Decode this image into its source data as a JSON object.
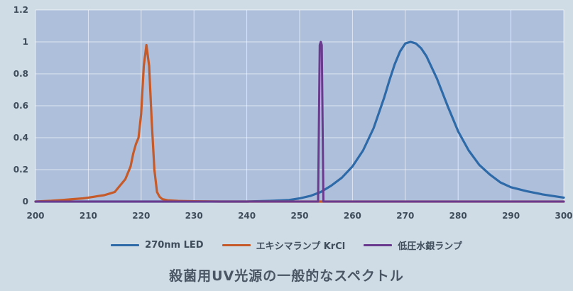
{
  "caption": "殺菌用UV光源の一般的なスペクトル",
  "chart_data": {
    "type": "line",
    "title": "殺菌用UV光源の一般的なスペクトル",
    "xlabel": "",
    "ylabel": "",
    "xlim": [
      200,
      300
    ],
    "ylim": [
      0,
      1.2
    ],
    "x_ticks": [
      200,
      210,
      220,
      230,
      240,
      250,
      260,
      270,
      280,
      290,
      300
    ],
    "y_ticks": [
      0,
      0.2,
      0.4,
      0.6,
      0.8,
      1,
      1.2
    ],
    "grid": true,
    "legend_position": "bottom",
    "background": "#aebfdc",
    "series": [
      {
        "name": "270nm LED",
        "color": "#2e6aa8",
        "x": [
          200,
          240,
          245,
          248,
          250,
          252,
          254,
          256,
          258,
          260,
          262,
          264,
          266,
          267,
          268,
          269,
          270,
          271,
          272,
          273,
          274,
          276,
          278,
          280,
          282,
          284,
          286,
          288,
          290,
          293,
          296,
          300
        ],
        "values": [
          0,
          0,
          0.005,
          0.01,
          0.02,
          0.035,
          0.06,
          0.1,
          0.15,
          0.22,
          0.32,
          0.46,
          0.65,
          0.76,
          0.86,
          0.94,
          0.99,
          1.0,
          0.99,
          0.96,
          0.91,
          0.77,
          0.6,
          0.44,
          0.32,
          0.23,
          0.17,
          0.12,
          0.09,
          0.065,
          0.045,
          0.025
        ]
      },
      {
        "name": "エキシマランプ KrCl",
        "color": "#c65a28",
        "x": [
          200,
          203,
          205,
          207,
          209,
          210,
          211,
          212,
          213,
          214,
          215,
          215.5,
          216,
          217,
          218,
          218.5,
          219,
          219.5,
          220,
          220.5,
          221,
          221.5,
          222,
          222.5,
          223,
          223.5,
          224,
          225,
          227,
          230,
          235,
          300
        ],
        "values": [
          0,
          0.005,
          0.01,
          0.015,
          0.02,
          0.025,
          0.03,
          0.035,
          0.04,
          0.05,
          0.06,
          0.08,
          0.1,
          0.14,
          0.22,
          0.3,
          0.36,
          0.4,
          0.55,
          0.85,
          0.98,
          0.85,
          0.5,
          0.2,
          0.06,
          0.03,
          0.015,
          0.008,
          0.004,
          0.002,
          0,
          0
        ]
      },
      {
        "name": "低圧水銀ランプ",
        "color": "#6a3a8e",
        "x": [
          200,
          253.5,
          253.8,
          254,
          254.2,
          254.5,
          300
        ],
        "values": [
          0,
          0,
          0.98,
          1.0,
          0.98,
          0,
          0
        ]
      }
    ]
  }
}
